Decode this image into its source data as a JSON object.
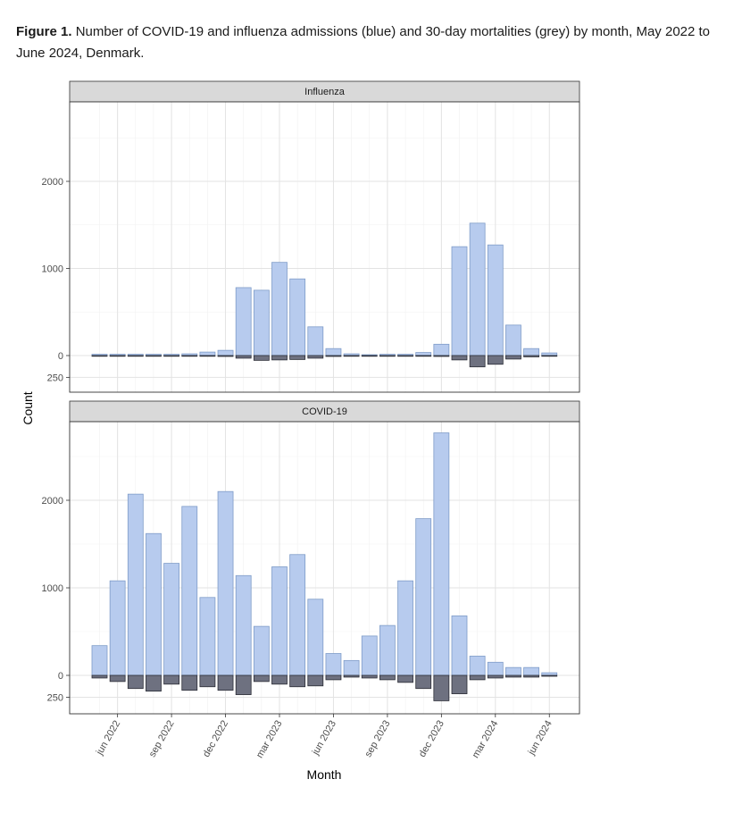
{
  "caption": {
    "label": "Figure 1.",
    "text": "Number of COVID-19 and influenza admissions (blue) and 30-day mortalities (grey) by month, May 2022 to June 2024, Denmark."
  },
  "colors": {
    "admissions": "#b7cbee",
    "admissions_stroke": "#7f9cc8",
    "mortality": "#6e7180",
    "mortality_stroke": "#2b2d36"
  },
  "chart_data": [
    {
      "type": "bar",
      "panel": "Influenza",
      "ylabel": "Count",
      "xlabel": "Month",
      "categories": [
        "May 2022",
        "Jun 2022",
        "Jul 2022",
        "Aug 2022",
        "Sep 2022",
        "Oct 2022",
        "Nov 2022",
        "Dec 2022",
        "Jan 2023",
        "Feb 2023",
        "Mar 2023",
        "Apr 2023",
        "May 2023",
        "Jun 2023",
        "Jul 2023",
        "Aug 2023",
        "Sep 2023",
        "Oct 2023",
        "Nov 2023",
        "Dec 2023",
        "Jan 2024",
        "Feb 2024",
        "Mar 2024",
        "Apr 2024",
        "May 2024",
        "Jun 2024"
      ],
      "series": [
        {
          "name": "admissions",
          "values": [
            15,
            15,
            15,
            15,
            15,
            20,
            40,
            60,
            780,
            750,
            1070,
            880,
            330,
            80,
            20,
            10,
            15,
            15,
            35,
            130,
            1250,
            1520,
            1270,
            350,
            80,
            30
          ]
        },
        {
          "name": "mortality",
          "values": [
            5,
            5,
            5,
            5,
            5,
            5,
            5,
            10,
            30,
            55,
            50,
            45,
            30,
            10,
            5,
            5,
            5,
            5,
            5,
            10,
            50,
            130,
            100,
            40,
            15,
            5
          ]
        }
      ],
      "y_tick_labels": [
        "2000",
        "1000",
        "0",
        "250"
      ],
      "y_tick_values": [
        2000,
        1000,
        0,
        -250
      ],
      "ylim": [
        -420,
        2900
      ],
      "grid": true
    },
    {
      "type": "bar",
      "panel": "COVID-19",
      "ylabel": "Count",
      "xlabel": "Month",
      "categories": [
        "May 2022",
        "Jun 2022",
        "Jul 2022",
        "Aug 2022",
        "Sep 2022",
        "Oct 2022",
        "Nov 2022",
        "Dec 2022",
        "Jan 2023",
        "Feb 2023",
        "Mar 2023",
        "Apr 2023",
        "May 2023",
        "Jun 2023",
        "Jul 2023",
        "Aug 2023",
        "Sep 2023",
        "Oct 2023",
        "Nov 2023",
        "Dec 2023",
        "Jan 2024",
        "Feb 2024",
        "Mar 2024",
        "Apr 2024",
        "May 2024",
        "Jun 2024"
      ],
      "series": [
        {
          "name": "admissions",
          "values": [
            340,
            1080,
            2070,
            1620,
            1280,
            1930,
            890,
            2100,
            1140,
            560,
            1240,
            1380,
            870,
            250,
            170,
            450,
            570,
            1080,
            1790,
            2770,
            680,
            220,
            150,
            90,
            90,
            30
          ]
        },
        {
          "name": "mortality",
          "values": [
            30,
            70,
            150,
            180,
            100,
            170,
            130,
            170,
            220,
            70,
            100,
            130,
            120,
            50,
            20,
            30,
            50,
            80,
            150,
            290,
            210,
            50,
            30,
            20,
            20,
            10
          ]
        }
      ],
      "y_tick_labels": [
        "2000",
        "1000",
        "0",
        "250"
      ],
      "y_tick_values": [
        2000,
        1000,
        0,
        -250
      ],
      "ylim": [
        -440,
        2900
      ],
      "grid": true
    }
  ],
  "x_tick_labels": [
    "jun 2022",
    "sep 2022",
    "dec 2022",
    "mar 2023",
    "jun 2023",
    "sep 2023",
    "dec 2023",
    "mar 2024",
    "jun 2024"
  ],
  "x_tick_month_index": [
    1,
    4,
    7,
    10,
    13,
    16,
    19,
    22,
    25
  ],
  "axis": {
    "y_title": "Count",
    "x_title": "Month"
  }
}
